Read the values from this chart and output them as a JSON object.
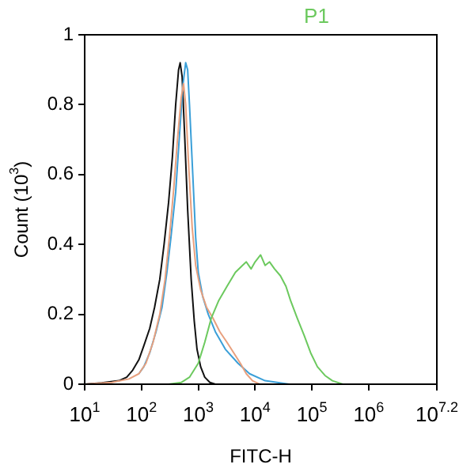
{
  "chart_data": {
    "type": "line",
    "title": "P1",
    "xlabel": "FITC-H",
    "ylabel": "Count (10$^{3}$)",
    "log": "x",
    "xlim": [
      10,
      15848932
    ],
    "ylim": [
      0,
      1
    ],
    "xticks": [
      {
        "value": 10,
        "label": "10$^{1}$"
      },
      {
        "value": 100,
        "label": "10$^{2}$"
      },
      {
        "value": 1000,
        "label": "10$^{3}$"
      },
      {
        "value": 10000,
        "label": "10$^{4}$"
      },
      {
        "value": 100000,
        "label": "10$^{5}$"
      },
      {
        "value": 1000000,
        "label": "10$^{6}$"
      },
      {
        "value": 15848932,
        "label": "10$^{7.2}$"
      }
    ],
    "yticks": [
      0,
      0.2,
      0.4,
      0.6,
      0.8,
      1
    ],
    "series": [
      {
        "color": "#6cc95e",
        "x": [
          300,
          500,
          700,
          1000,
          1300,
          1700,
          2300,
          3200,
          4500,
          6000,
          7000,
          8500,
          10000,
          12500,
          15000,
          18000,
          22000,
          28000,
          35000,
          42000,
          55000,
          73000,
          95000,
          125000,
          170000,
          230000,
          350000
        ],
        "values": [
          0,
          0.005,
          0.02,
          0.06,
          0.12,
          0.19,
          0.24,
          0.28,
          0.32,
          0.34,
          0.35,
          0.33,
          0.35,
          0.37,
          0.34,
          0.35,
          0.33,
          0.31,
          0.28,
          0.24,
          0.19,
          0.14,
          0.09,
          0.05,
          0.025,
          0.01,
          0
        ]
      },
      {
        "color": "#e8a07e",
        "x": [
          10,
          30,
          60,
          90,
          120,
          160,
          210,
          260,
          310,
          370,
          430,
          500,
          550,
          600,
          680,
          780,
          900,
          1100,
          1400,
          1800,
          2400,
          3200,
          4200,
          5500,
          7000,
          9000,
          12000
        ],
        "values": [
          0,
          0.005,
          0.015,
          0.03,
          0.06,
          0.12,
          0.2,
          0.3,
          0.42,
          0.56,
          0.7,
          0.82,
          0.86,
          0.8,
          0.62,
          0.45,
          0.34,
          0.27,
          0.22,
          0.19,
          0.15,
          0.12,
          0.09,
          0.06,
          0.03,
          0.01,
          0
        ]
      },
      {
        "color": "#3a9fd8",
        "x": [
          90,
          110,
          140,
          180,
          230,
          280,
          330,
          400,
          470,
          540,
          600,
          650,
          700,
          800,
          900,
          1000,
          1200,
          1500,
          2000,
          3000,
          5000,
          8000,
          15000,
          40000
        ],
        "values": [
          0.03,
          0.05,
          0.09,
          0.15,
          0.22,
          0.32,
          0.42,
          0.55,
          0.72,
          0.86,
          0.92,
          0.9,
          0.8,
          0.6,
          0.42,
          0.32,
          0.25,
          0.2,
          0.15,
          0.1,
          0.06,
          0.03,
          0.01,
          0
        ]
      },
      {
        "color": "#111111",
        "x": [
          10,
          20,
          40,
          55,
          70,
          90,
          110,
          140,
          170,
          210,
          250,
          300,
          350,
          400,
          450,
          480,
          520,
          580,
          650,
          750,
          850,
          950,
          1100,
          1300,
          1600,
          2000
        ],
        "values": [
          0,
          0.004,
          0.01,
          0.02,
          0.04,
          0.07,
          0.11,
          0.16,
          0.22,
          0.3,
          0.4,
          0.52,
          0.65,
          0.8,
          0.9,
          0.92,
          0.88,
          0.7,
          0.5,
          0.3,
          0.18,
          0.1,
          0.05,
          0.02,
          0.005,
          0
        ]
      }
    ]
  }
}
